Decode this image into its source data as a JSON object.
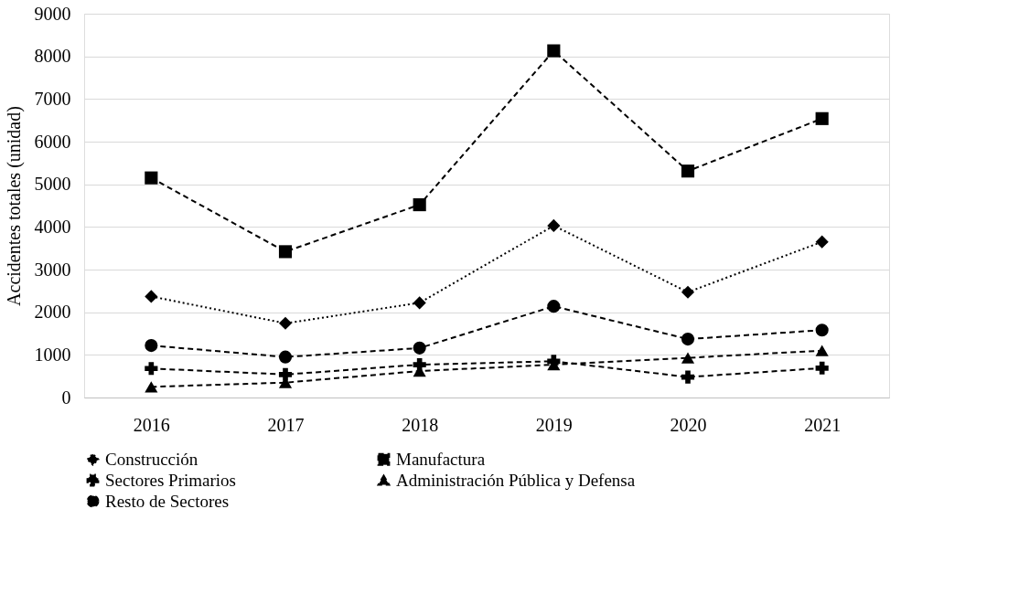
{
  "chart_data": {
    "type": "line",
    "ylabel": "Accidentes totales (unidad)",
    "categories": [
      "2016",
      "2017",
      "2018",
      "2019",
      "2020",
      "2021"
    ],
    "series": [
      {
        "name": "Construcción",
        "color": "#000000",
        "marker": "diamond",
        "line_style": "dotted",
        "values": [
          2370,
          1740,
          2220,
          4030,
          2470,
          3650
        ]
      },
      {
        "name": "Manufactura",
        "color": "#000000",
        "marker": "square",
        "line_style": "dashed",
        "values": [
          5150,
          3420,
          4520,
          8130,
          5310,
          6540
        ]
      },
      {
        "name": "Sectores Primarios",
        "color": "#000000",
        "marker": "cross",
        "line_style": "dashed",
        "values": [
          680,
          540,
          770,
          850,
          480,
          690
        ]
      },
      {
        "name": "Administración Pública y Defensa",
        "color": "#000000",
        "marker": "triangle",
        "line_style": "dashed",
        "values": [
          250,
          350,
          620,
          770,
          930,
          1100
        ]
      },
      {
        "name": "Resto de Sectores",
        "color": "#000000",
        "marker": "circle",
        "line_style": "dashed",
        "values": [
          1220,
          950,
          1160,
          2140,
          1370,
          1580
        ]
      }
    ],
    "ylim": [
      0,
      9000
    ],
    "yticks": [
      0,
      1000,
      2000,
      3000,
      4000,
      5000,
      6000,
      7000,
      8000,
      9000
    ],
    "grid": "y",
    "legend": "bottom"
  }
}
